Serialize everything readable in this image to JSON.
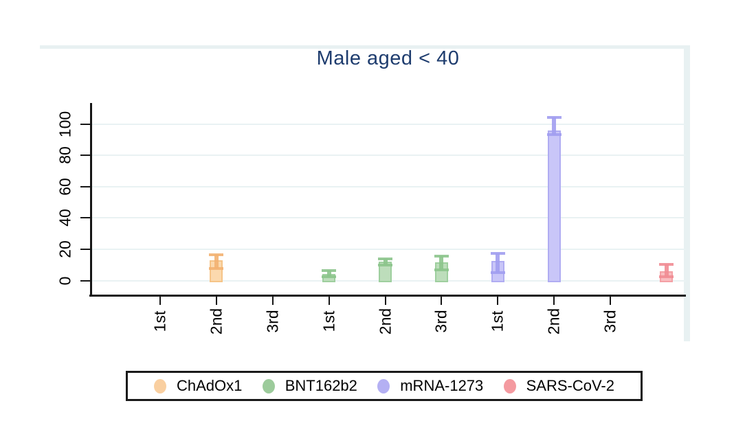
{
  "chart_data": {
    "type": "bar",
    "title": "Male aged < 40",
    "xlabel": "",
    "ylabel": "",
    "ylim": [
      0,
      113
    ],
    "grid": true,
    "y_ticks": [
      0,
      20,
      40,
      60,
      80,
      100
    ],
    "x_tick_labels": [
      "1st",
      "2nd",
      "3rd",
      "1st",
      "2nd",
      "3rd",
      "1st",
      "2nd",
      "3rd"
    ],
    "legend_position": "bottom",
    "series": [
      {
        "name": "ChAdOx1",
        "fill": "#fbd9ae",
        "edge": "#f6c488",
        "error_color": "#f3b171",
        "points": [
          {
            "dose": "2nd",
            "slot": 1,
            "value": 13,
            "ci_low": 7.5,
            "ci_high": 16.5
          }
        ]
      },
      {
        "name": "BNT162b2",
        "fill": "#bdddbb",
        "edge": "#9ecf9e",
        "error_color": "#8cc48c",
        "points": [
          {
            "dose": "1st",
            "slot": 3,
            "value": 4,
            "ci_low": 2.5,
            "ci_high": 6.5
          },
          {
            "dose": "2nd",
            "slot": 4,
            "value": 12,
            "ci_low": 10,
            "ci_high": 14
          },
          {
            "dose": "3rd",
            "slot": 5,
            "value": 11.5,
            "ci_low": 7,
            "ci_high": 15.5
          }
        ]
      },
      {
        "name": "mRNA-1273",
        "fill": "#c9c6f8",
        "edge": "#b0acf2",
        "error_color": "#a19df0",
        "points": [
          {
            "dose": "1st",
            "slot": 6,
            "value": 12.5,
            "ci_low": 5,
            "ci_high": 17.5
          },
          {
            "dose": "2nd",
            "slot": 7,
            "value": 96,
            "ci_low": 93.5,
            "ci_high": 104.5
          }
        ]
      },
      {
        "name": "SARS-CoV-2",
        "fill": "#f9bdc0",
        "edge": "#f4a0a5",
        "error_color": "#f18c93",
        "points": [
          {
            "dose": "",
            "slot": 9,
            "value": 6,
            "ci_low": 2.5,
            "ci_high": 10.5
          }
        ]
      }
    ],
    "legend": [
      {
        "label": "ChAdOx1",
        "color": "#f9cfa0"
      },
      {
        "label": "BNT162b2",
        "color": "#9ccb9b"
      },
      {
        "label": "mRNA-1273",
        "color": "#b4b0f3"
      },
      {
        "label": "SARS-CoV-2",
        "color": "#f49aa0"
      }
    ],
    "colors": {
      "title": "#1e3c6e",
      "gridline": "#e9f2f3",
      "frame_stripe": "#e8f1f2",
      "axis": "#161616"
    }
  }
}
